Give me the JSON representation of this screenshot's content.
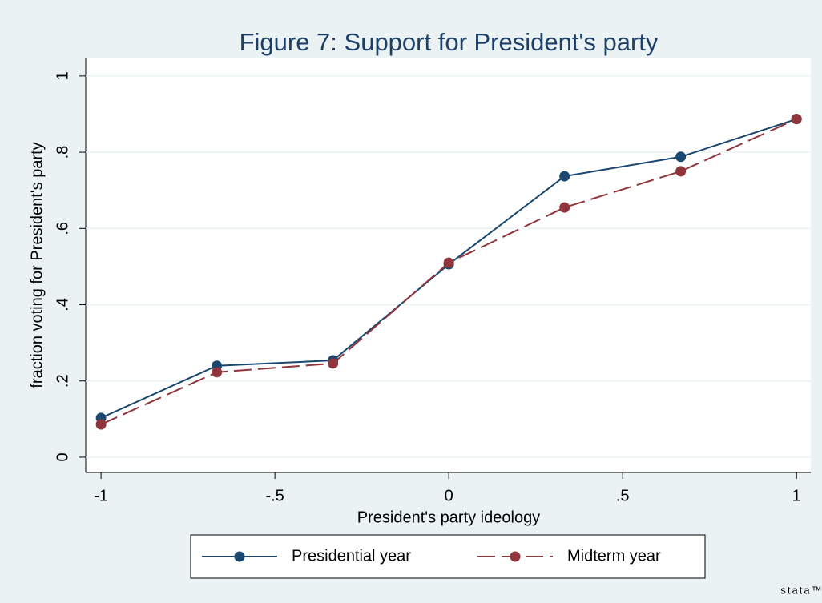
{
  "chart_data": {
    "type": "line",
    "title": "Figure 7: Support for President's party",
    "x_label": "President's party ideology",
    "y_label": "fraction voting for President's party",
    "x": [
      -1,
      -0.667,
      -0.333,
      0,
      0.333,
      0.667,
      1
    ],
    "series": [
      {
        "name": "Presidential year",
        "color": "#1a476f",
        "line_style": "solid",
        "values": [
          0.103,
          0.24,
          0.254,
          0.506,
          0.737,
          0.788,
          0.887
        ]
      },
      {
        "name": "Midterm year",
        "color": "#90353b",
        "line_style": "dashed",
        "values": [
          0.086,
          0.223,
          0.246,
          0.51,
          0.655,
          0.75,
          0.887
        ]
      }
    ],
    "xlim": [
      -1.044,
      1.041
    ],
    "xticks": [
      -1,
      {
        "value": -0.5,
        "label": "-.5"
      },
      0,
      {
        "value": 0.5,
        "label": ".5"
      },
      1
    ],
    "ylim": [
      -0.04,
      1.048
    ],
    "yticks": [
      0,
      {
        "value": 0.2,
        "label": ".2"
      },
      {
        "value": 0.4,
        "label": ".4"
      },
      {
        "value": 0.6,
        "label": ".6"
      },
      {
        "value": 0.8,
        "label": ".8"
      },
      1
    ],
    "grid": true,
    "legend_position": "bottom",
    "watermark": "stata™"
  }
}
